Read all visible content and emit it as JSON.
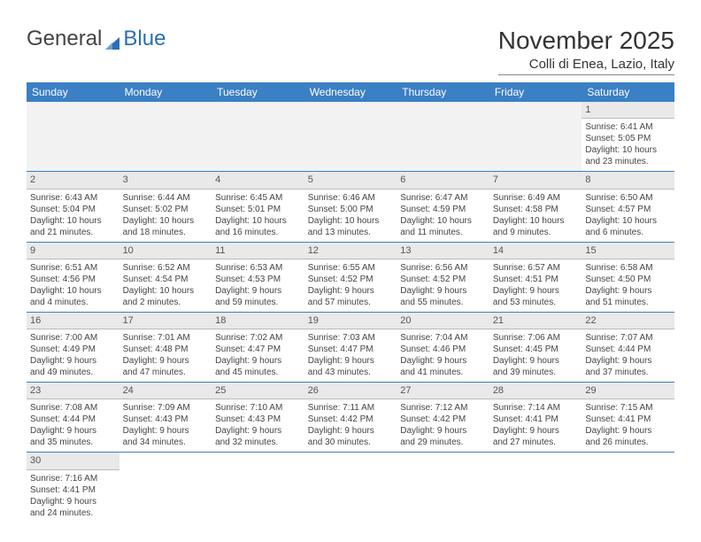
{
  "brand": {
    "part1": "General",
    "part2": "Blue"
  },
  "title": "November 2025",
  "location": "Colli di Enea, Lazio, Italy",
  "colors": {
    "header_bg": "#3b7fc4",
    "header_text": "#ffffff",
    "daynum_bg": "#e9e9e9",
    "row_divider": "#3b7fc4",
    "logo_blue": "#2a6db8",
    "text": "#333333",
    "muted_text": "#555555"
  },
  "day_headers": [
    "Sunday",
    "Monday",
    "Tuesday",
    "Wednesday",
    "Thursday",
    "Friday",
    "Saturday"
  ],
  "weeks": [
    [
      null,
      null,
      null,
      null,
      null,
      null,
      {
        "n": "1",
        "sr": "Sunrise: 6:41 AM",
        "ss": "Sunset: 5:05 PM",
        "d1": "Daylight: 10 hours",
        "d2": "and 23 minutes."
      }
    ],
    [
      {
        "n": "2",
        "sr": "Sunrise: 6:43 AM",
        "ss": "Sunset: 5:04 PM",
        "d1": "Daylight: 10 hours",
        "d2": "and 21 minutes."
      },
      {
        "n": "3",
        "sr": "Sunrise: 6:44 AM",
        "ss": "Sunset: 5:02 PM",
        "d1": "Daylight: 10 hours",
        "d2": "and 18 minutes."
      },
      {
        "n": "4",
        "sr": "Sunrise: 6:45 AM",
        "ss": "Sunset: 5:01 PM",
        "d1": "Daylight: 10 hours",
        "d2": "and 16 minutes."
      },
      {
        "n": "5",
        "sr": "Sunrise: 6:46 AM",
        "ss": "Sunset: 5:00 PM",
        "d1": "Daylight: 10 hours",
        "d2": "and 13 minutes."
      },
      {
        "n": "6",
        "sr": "Sunrise: 6:47 AM",
        "ss": "Sunset: 4:59 PM",
        "d1": "Daylight: 10 hours",
        "d2": "and 11 minutes."
      },
      {
        "n": "7",
        "sr": "Sunrise: 6:49 AM",
        "ss": "Sunset: 4:58 PM",
        "d1": "Daylight: 10 hours",
        "d2": "and 9 minutes."
      },
      {
        "n": "8",
        "sr": "Sunrise: 6:50 AM",
        "ss": "Sunset: 4:57 PM",
        "d1": "Daylight: 10 hours",
        "d2": "and 6 minutes."
      }
    ],
    [
      {
        "n": "9",
        "sr": "Sunrise: 6:51 AM",
        "ss": "Sunset: 4:56 PM",
        "d1": "Daylight: 10 hours",
        "d2": "and 4 minutes."
      },
      {
        "n": "10",
        "sr": "Sunrise: 6:52 AM",
        "ss": "Sunset: 4:54 PM",
        "d1": "Daylight: 10 hours",
        "d2": "and 2 minutes."
      },
      {
        "n": "11",
        "sr": "Sunrise: 6:53 AM",
        "ss": "Sunset: 4:53 PM",
        "d1": "Daylight: 9 hours",
        "d2": "and 59 minutes."
      },
      {
        "n": "12",
        "sr": "Sunrise: 6:55 AM",
        "ss": "Sunset: 4:52 PM",
        "d1": "Daylight: 9 hours",
        "d2": "and 57 minutes."
      },
      {
        "n": "13",
        "sr": "Sunrise: 6:56 AM",
        "ss": "Sunset: 4:52 PM",
        "d1": "Daylight: 9 hours",
        "d2": "and 55 minutes."
      },
      {
        "n": "14",
        "sr": "Sunrise: 6:57 AM",
        "ss": "Sunset: 4:51 PM",
        "d1": "Daylight: 9 hours",
        "d2": "and 53 minutes."
      },
      {
        "n": "15",
        "sr": "Sunrise: 6:58 AM",
        "ss": "Sunset: 4:50 PM",
        "d1": "Daylight: 9 hours",
        "d2": "and 51 minutes."
      }
    ],
    [
      {
        "n": "16",
        "sr": "Sunrise: 7:00 AM",
        "ss": "Sunset: 4:49 PM",
        "d1": "Daylight: 9 hours",
        "d2": "and 49 minutes."
      },
      {
        "n": "17",
        "sr": "Sunrise: 7:01 AM",
        "ss": "Sunset: 4:48 PM",
        "d1": "Daylight: 9 hours",
        "d2": "and 47 minutes."
      },
      {
        "n": "18",
        "sr": "Sunrise: 7:02 AM",
        "ss": "Sunset: 4:47 PM",
        "d1": "Daylight: 9 hours",
        "d2": "and 45 minutes."
      },
      {
        "n": "19",
        "sr": "Sunrise: 7:03 AM",
        "ss": "Sunset: 4:47 PM",
        "d1": "Daylight: 9 hours",
        "d2": "and 43 minutes."
      },
      {
        "n": "20",
        "sr": "Sunrise: 7:04 AM",
        "ss": "Sunset: 4:46 PM",
        "d1": "Daylight: 9 hours",
        "d2": "and 41 minutes."
      },
      {
        "n": "21",
        "sr": "Sunrise: 7:06 AM",
        "ss": "Sunset: 4:45 PM",
        "d1": "Daylight: 9 hours",
        "d2": "and 39 minutes."
      },
      {
        "n": "22",
        "sr": "Sunrise: 7:07 AM",
        "ss": "Sunset: 4:44 PM",
        "d1": "Daylight: 9 hours",
        "d2": "and 37 minutes."
      }
    ],
    [
      {
        "n": "23",
        "sr": "Sunrise: 7:08 AM",
        "ss": "Sunset: 4:44 PM",
        "d1": "Daylight: 9 hours",
        "d2": "and 35 minutes."
      },
      {
        "n": "24",
        "sr": "Sunrise: 7:09 AM",
        "ss": "Sunset: 4:43 PM",
        "d1": "Daylight: 9 hours",
        "d2": "and 34 minutes."
      },
      {
        "n": "25",
        "sr": "Sunrise: 7:10 AM",
        "ss": "Sunset: 4:43 PM",
        "d1": "Daylight: 9 hours",
        "d2": "and 32 minutes."
      },
      {
        "n": "26",
        "sr": "Sunrise: 7:11 AM",
        "ss": "Sunset: 4:42 PM",
        "d1": "Daylight: 9 hours",
        "d2": "and 30 minutes."
      },
      {
        "n": "27",
        "sr": "Sunrise: 7:12 AM",
        "ss": "Sunset: 4:42 PM",
        "d1": "Daylight: 9 hours",
        "d2": "and 29 minutes."
      },
      {
        "n": "28",
        "sr": "Sunrise: 7:14 AM",
        "ss": "Sunset: 4:41 PM",
        "d1": "Daylight: 9 hours",
        "d2": "and 27 minutes."
      },
      {
        "n": "29",
        "sr": "Sunrise: 7:15 AM",
        "ss": "Sunset: 4:41 PM",
        "d1": "Daylight: 9 hours",
        "d2": "and 26 minutes."
      }
    ],
    [
      {
        "n": "30",
        "sr": "Sunrise: 7:16 AM",
        "ss": "Sunset: 4:41 PM",
        "d1": "Daylight: 9 hours",
        "d2": "and 24 minutes."
      },
      null,
      null,
      null,
      null,
      null,
      null
    ]
  ]
}
